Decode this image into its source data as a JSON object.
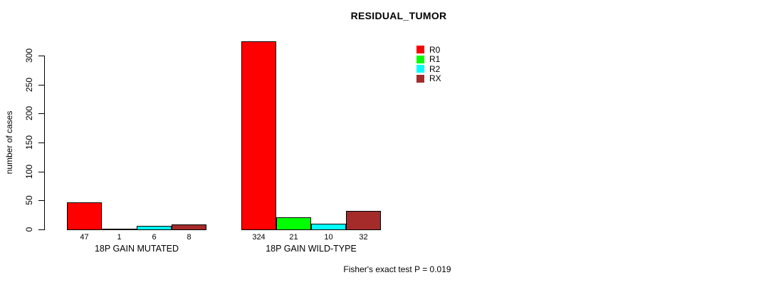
{
  "chart_data": {
    "type": "bar",
    "title": "RESIDUAL_TUMOR",
    "ylabel": "number of cases",
    "xlabel": "",
    "ylim": [
      0,
      300
    ],
    "yticks": [
      0,
      50,
      100,
      150,
      200,
      250,
      300
    ],
    "grid": false,
    "legend_position": "top-right-inside",
    "categories": [
      "18P GAIN MUTATED",
      "18P GAIN WILD-TYPE"
    ],
    "series": [
      {
        "name": "R0",
        "color": "#FF0000",
        "values": [
          47,
          324
        ]
      },
      {
        "name": "R1",
        "color": "#00FF00",
        "values": [
          1,
          21
        ]
      },
      {
        "name": "R2",
        "color": "#00FFFF",
        "values": [
          6,
          10
        ]
      },
      {
        "name": "RX",
        "color": "#A52A2A",
        "values": [
          8,
          32
        ]
      }
    ],
    "bar_value_labels": [
      [
        "47",
        "1",
        "6",
        "8"
      ],
      [
        "324",
        "21",
        "10",
        "32"
      ]
    ],
    "annotation": "Fisher's exact test P = 0.019"
  }
}
